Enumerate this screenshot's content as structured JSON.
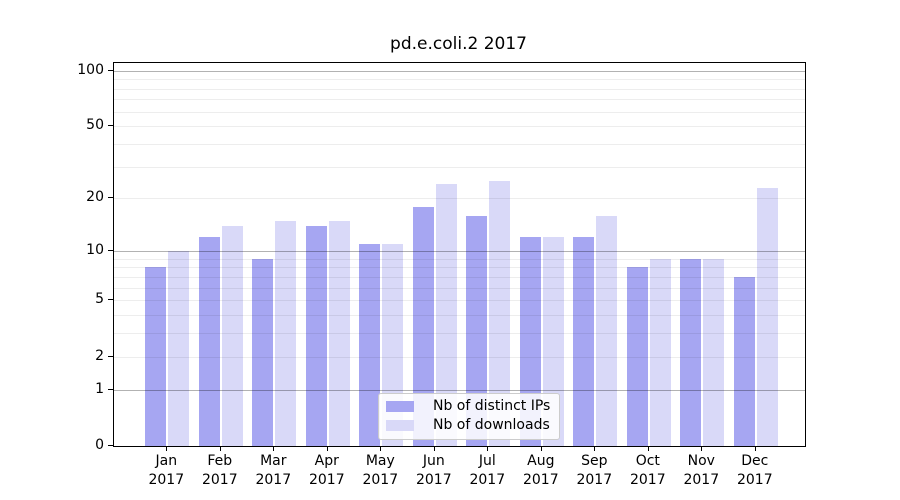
{
  "chart_data": {
    "type": "bar",
    "title": "pd.e.coli.2 2017",
    "categories": [
      "Jan",
      "Feb",
      "Mar",
      "Apr",
      "May",
      "Jun",
      "Jul",
      "Aug",
      "Sep",
      "Oct",
      "Nov",
      "Dec"
    ],
    "year": "2017",
    "series": [
      {
        "name": "Nb of distinct IPs",
        "color": "#a6a6f2",
        "values": [
          8,
          12,
          9,
          14,
          11,
          18,
          16,
          12,
          12,
          8,
          9,
          7
        ]
      },
      {
        "name": "Nb of downloads",
        "color": "#d9d9f8",
        "values": [
          10,
          14,
          15,
          15,
          11,
          24,
          25,
          12,
          16,
          9,
          9,
          23
        ]
      }
    ],
    "y_axis": {
      "scale": "log10(1+x)",
      "scale_max": 110,
      "tick_values": [
        100,
        50,
        20,
        10,
        5,
        2,
        1,
        0
      ],
      "tick_labels": [
        "100",
        "50",
        "20",
        "10",
        "5",
        "2",
        "1",
        "0"
      ],
      "major_gridlines": [
        1,
        10,
        100
      ],
      "minor_gridlines": [
        2,
        3,
        4,
        5,
        6,
        7,
        8,
        9,
        20,
        30,
        40,
        50,
        60,
        70,
        80,
        90
      ]
    },
    "legend_position": "lower center",
    "colors": {
      "axis_frame": "#000000",
      "major_grid": "rgba(0,0,0,0.30)",
      "minor_grid": "rgba(0,0,0,0.07)",
      "background": "#ffffff"
    }
  }
}
